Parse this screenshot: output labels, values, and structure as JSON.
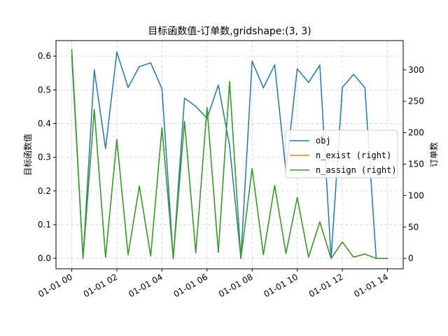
{
  "chart_data": {
    "type": "line",
    "title": "目标函数值-订单数,gridshape:(3, 3)",
    "ylabel": "目标函数值",
    "y2label": "订单数",
    "xlabel": "",
    "x": [
      "01-01 00:00",
      "01-01 00:30",
      "01-01 01:00",
      "01-01 01:30",
      "01-01 02:00",
      "01-01 02:30",
      "01-01 03:00",
      "01-01 03:30",
      "01-01 04:00",
      "01-01 04:30",
      "01-01 05:00",
      "01-01 05:30",
      "01-01 06:00",
      "01-01 06:30",
      "01-01 07:00",
      "01-01 07:30",
      "01-01 08:00",
      "01-01 08:30",
      "01-01 09:00",
      "01-01 09:30",
      "01-01 10:00",
      "01-01 10:30",
      "01-01 11:00",
      "01-01 11:30",
      "01-01 12:00",
      "01-01 12:30",
      "01-01 13:00",
      "01-01 13:30",
      "01-01 14:00"
    ],
    "x_ticks": [
      "01-01 00",
      "01-01 02",
      "01-01 04",
      "01-01 06",
      "01-01 08",
      "01-01 10",
      "01-01 12",
      "01-01 14"
    ],
    "ylim": [
      -0.031,
      0.646
    ],
    "y_ticks": [
      "0.0",
      "0.1",
      "0.2",
      "0.3",
      "0.4",
      "0.5",
      "0.6"
    ],
    "y2lim": [
      -16.5,
      346.5
    ],
    "y2_ticks": [
      "0",
      "50",
      "100",
      "150",
      "200",
      "250",
      "300"
    ],
    "grid": true,
    "legend_position": "center-right",
    "series": [
      {
        "name": "obj",
        "axis": "left",
        "color": "#1f77b4",
        "values": [
          0.6,
          0.0,
          0.559,
          0.326,
          0.612,
          0.507,
          0.569,
          0.58,
          0.503,
          0.0,
          0.475,
          0.451,
          0.415,
          0.514,
          0.334,
          0.0,
          0.585,
          0.506,
          0.574,
          0.257,
          0.562,
          0.522,
          0.573,
          0.0,
          0.507,
          0.546,
          0.506,
          0.0,
          0.0
        ]
      },
      {
        "name": "n_exist (right)",
        "axis": "right",
        "color": "#ff7f0e",
        "values": [
          332,
          0,
          237,
          2,
          189,
          6,
          115,
          4,
          208,
          0,
          218,
          9,
          240,
          10,
          281,
          0,
          143,
          6,
          116,
          8,
          97,
          2,
          58,
          0,
          26,
          2,
          7,
          0,
          0
        ]
      },
      {
        "name": "n_assign (right)",
        "axis": "right",
        "color": "#2ca02c",
        "values": [
          332,
          0,
          237,
          2,
          189,
          6,
          115,
          4,
          208,
          0,
          218,
          9,
          240,
          10,
          281,
          0,
          143,
          6,
          116,
          8,
          97,
          2,
          58,
          0,
          26,
          2,
          7,
          0,
          0
        ]
      }
    ]
  }
}
